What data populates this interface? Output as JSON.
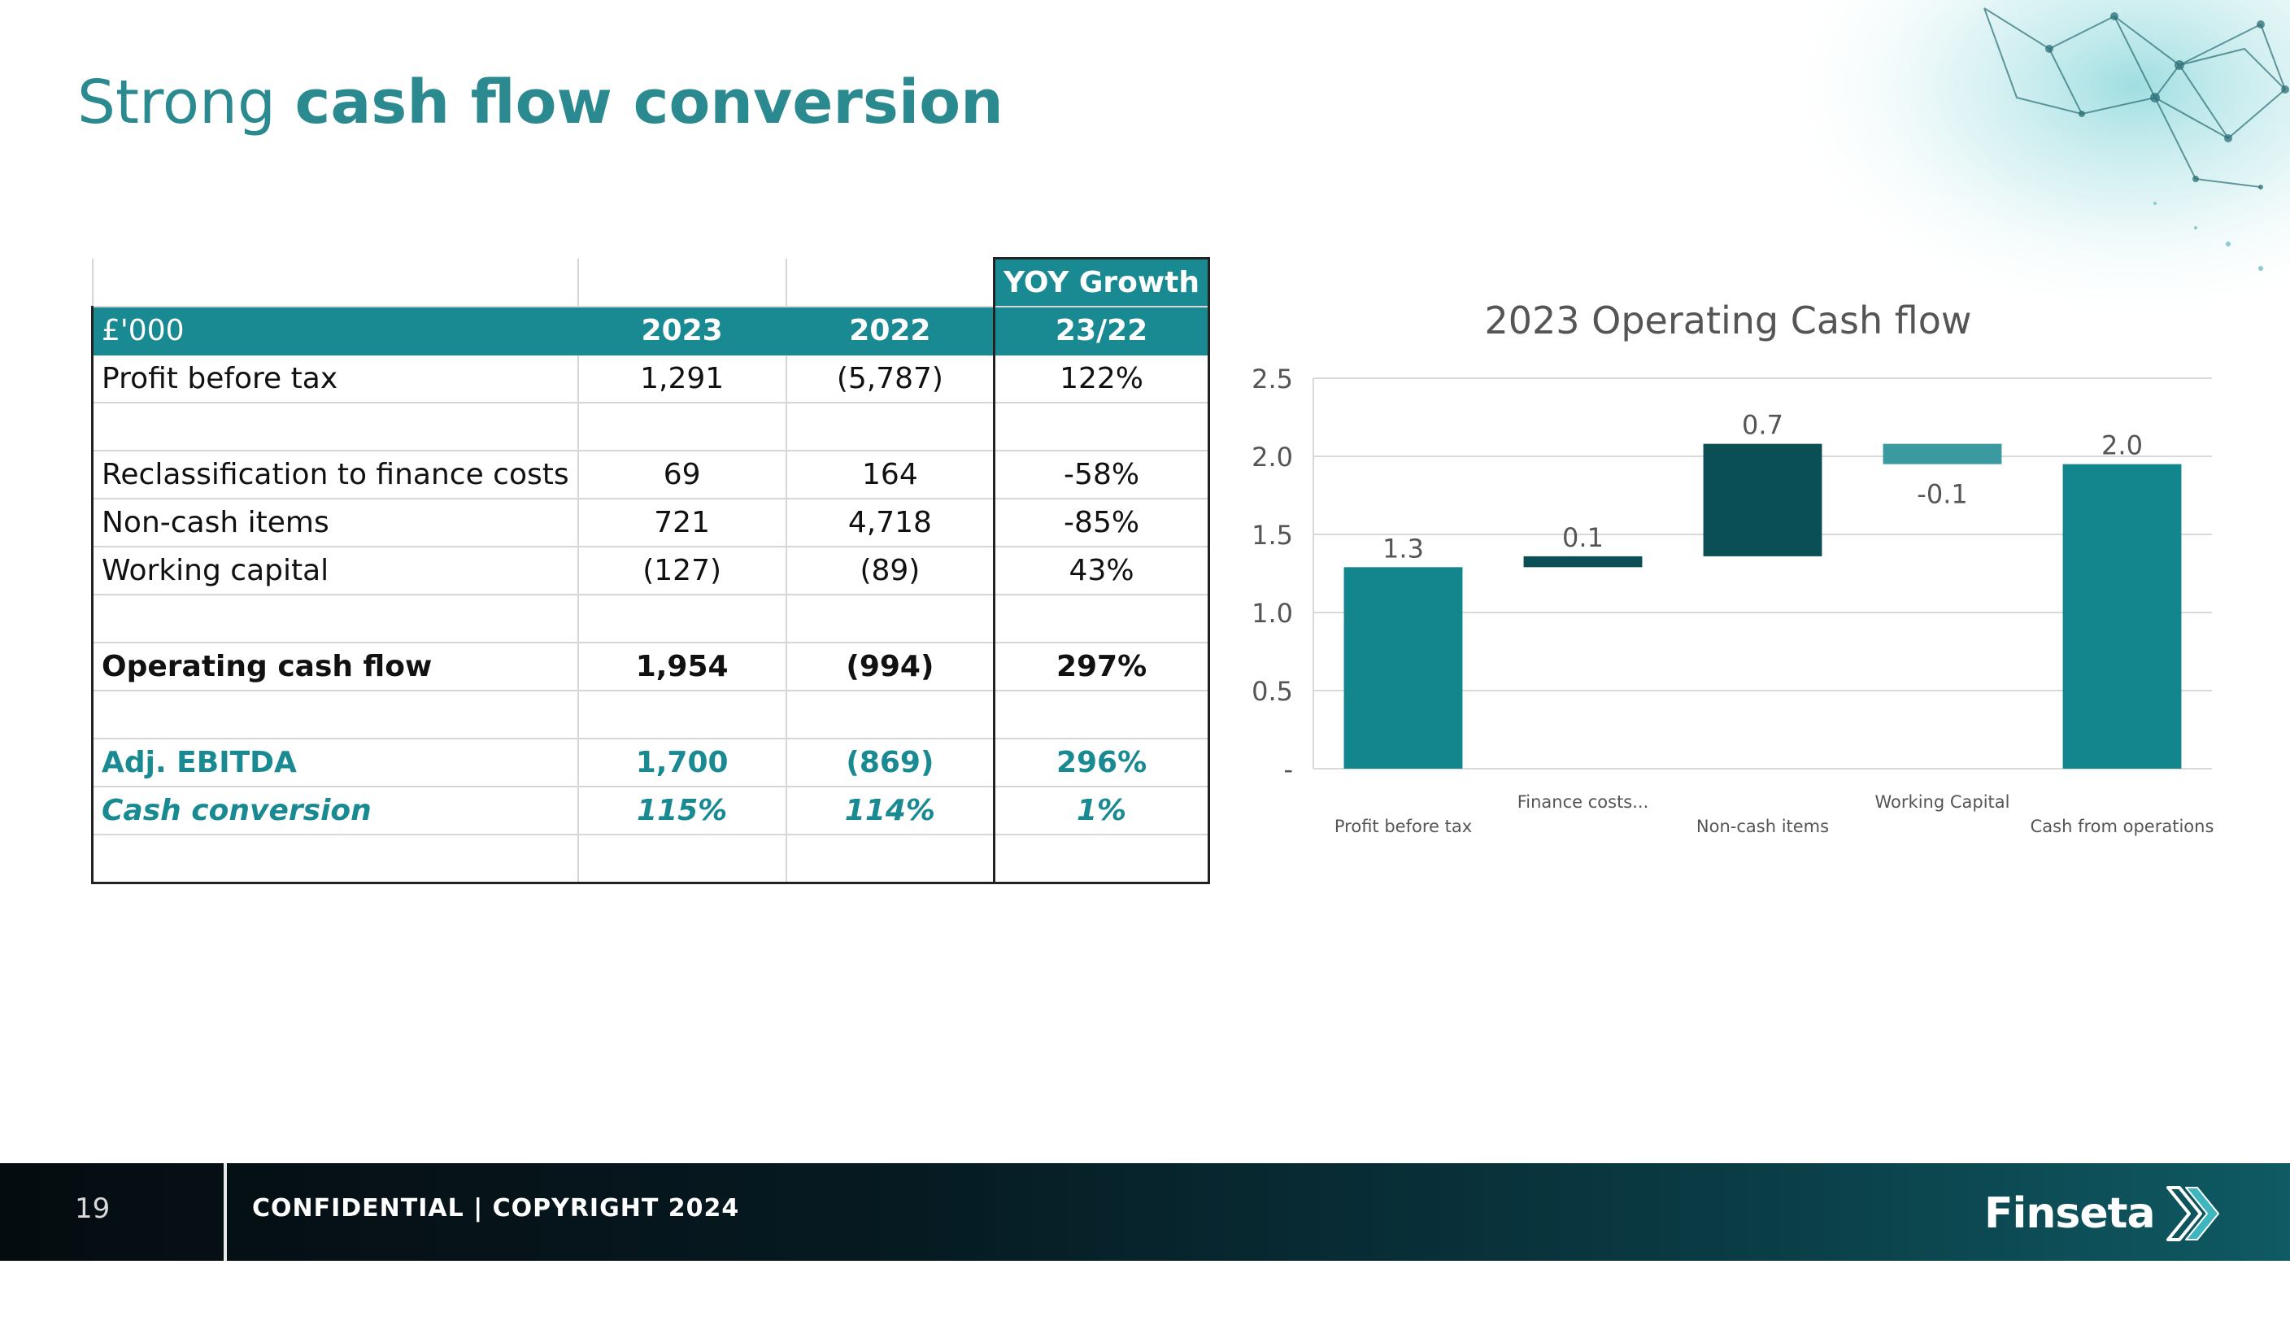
{
  "slide": {
    "title_light": "Strong ",
    "title_bold": "cash flow conversion"
  },
  "table": {
    "yoy_header": "YOY Growth",
    "header": [
      "£'000",
      "2023",
      "2022",
      "23/22"
    ],
    "rows": [
      {
        "label": "Profit before tax",
        "c2023": "1,291",
        "c2022": "(5,787)",
        "yoy": "122%"
      },
      {
        "label": "",
        "c2023": "",
        "c2022": "",
        "yoy": ""
      },
      {
        "label": "Reclassification to finance costs",
        "c2023": "69",
        "c2022": "164",
        "yoy": "-58%"
      },
      {
        "label": "Non-cash items",
        "c2023": "721",
        "c2022": "4,718",
        "yoy": "-85%"
      },
      {
        "label": "Working capital",
        "c2023": "(127)",
        "c2022": "(89)",
        "yoy": "43%"
      },
      {
        "label": "",
        "c2023": "",
        "c2022": "",
        "yoy": ""
      },
      {
        "label": "Operating cash flow",
        "c2023": "1,954",
        "c2022": "(994)",
        "yoy": "297%"
      },
      {
        "label": "",
        "c2023": "",
        "c2022": "",
        "yoy": ""
      },
      {
        "label": "Adj. EBITDA",
        "c2023": "1,700",
        "c2022": "(869)",
        "yoy": "296%"
      },
      {
        "label": "Cash conversion",
        "c2023": "115%",
        "c2022": "114%",
        "yoy": "1%"
      },
      {
        "label": "",
        "c2023": "",
        "c2022": "",
        "yoy": ""
      }
    ]
  },
  "chart_data": {
    "type": "bar",
    "subtype": "waterfall",
    "title": "2023 Operating Cash flow",
    "categories": [
      "Profit before tax",
      "Finance costs...",
      "Non-cash items",
      "Working Capital",
      "Cash from operations"
    ],
    "values": [
      1.3,
      0.1,
      0.7,
      -0.1,
      2.0
    ],
    "data_labels": [
      "1.3",
      "0.1",
      "0.7",
      "-0.1",
      "2.0"
    ],
    "bar_bottoms": [
      0,
      1.29,
      1.36,
      1.95,
      0
    ],
    "bar_tops": [
      1.29,
      1.36,
      2.08,
      2.08,
      1.95
    ],
    "ylim": [
      0,
      2.5
    ],
    "yticks": [
      0,
      0.5,
      1.0,
      1.5,
      2.0,
      2.5
    ],
    "ytick_labels": [
      "-",
      "0.5",
      "1.0",
      "1.5",
      "2.0",
      "2.5"
    ],
    "grid": true,
    "colors": {
      "total": "#13858d",
      "increase": "#0a4f56",
      "decrease": "#3a9aa0"
    }
  },
  "footer": {
    "page_number": "19",
    "confidential": "CONFIDENTIAL | COPYRIGHT 2024",
    "brand": "Finseta"
  },
  "theme": {
    "accent": "#1a8a92",
    "footer_bg": "#061a22"
  }
}
